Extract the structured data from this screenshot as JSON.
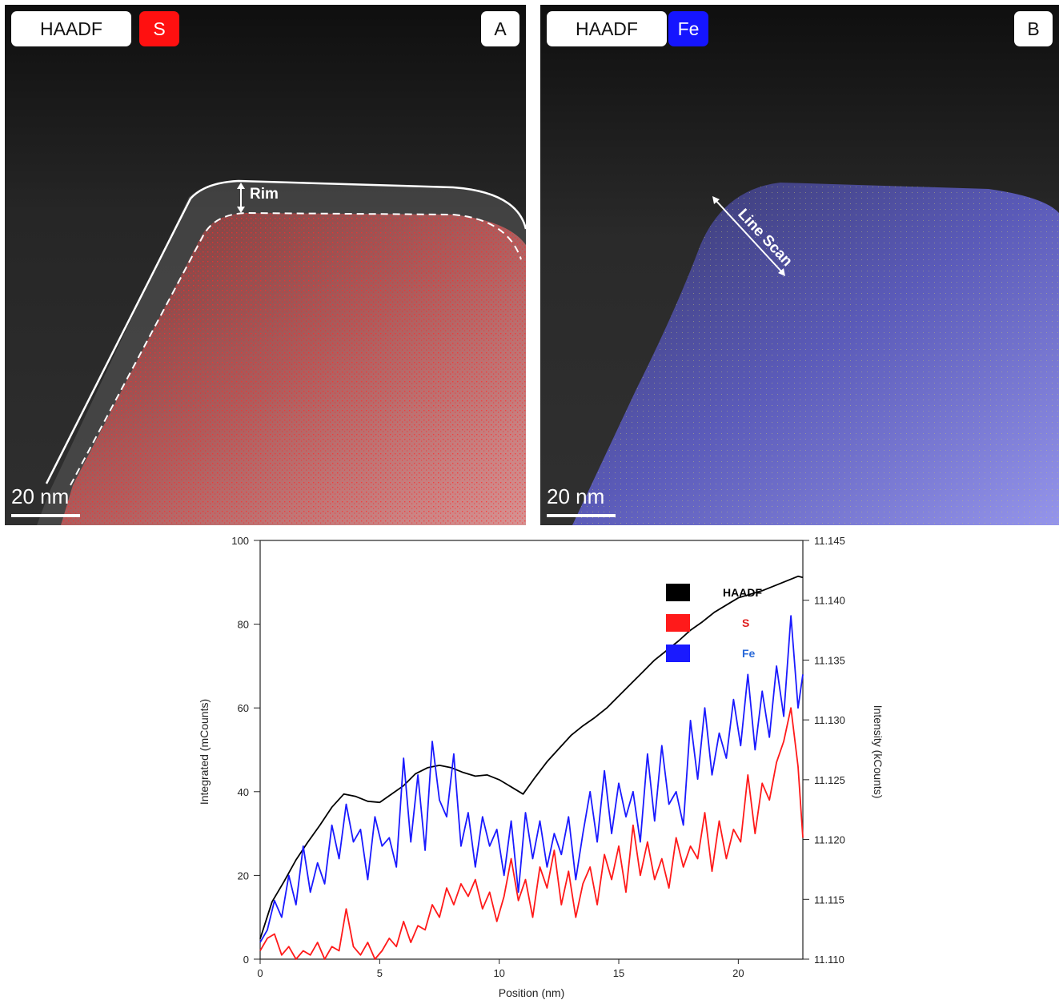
{
  "panel_a": {
    "channel_1": "HAADF",
    "channel_2": "S",
    "letter": "A",
    "scale_label": "20 nm",
    "annotation": "Rim",
    "overlay_color": "#ff3030"
  },
  "panel_b": {
    "channel_1": "HAADF",
    "channel_2": "Fe",
    "letter": "B",
    "scale_label": "20 nm",
    "annotation": "Line Scan",
    "overlay_color": "#7070ff"
  },
  "chart_data": {
    "type": "line",
    "xlabel": "Position (nm)",
    "ylabel_left": "Integrated (mCounts)",
    "ylabel_right": "Intensity (kCounts)",
    "xlim": [
      0,
      22.7
    ],
    "ylim_left": [
      0,
      100
    ],
    "ylim_right": [
      11.11,
      11.145
    ],
    "x_ticks": [
      0,
      5,
      10,
      15,
      20
    ],
    "y_ticks_left": [
      0,
      20,
      40,
      60,
      80,
      100
    ],
    "y_ticks_right": [
      "11.110",
      "11.115",
      "11.120",
      "11.125",
      "11.130",
      "11.135",
      "11.140",
      "11.145"
    ],
    "legend": [
      {
        "name": "HAADF",
        "color": "#000000",
        "label_color": "#000000"
      },
      {
        "name": "S",
        "color": "#ff1a1a",
        "label_color": "#e02020"
      },
      {
        "name": "Fe",
        "color": "#1a1aff",
        "label_color": "#2a6ad8"
      }
    ],
    "series": [
      {
        "name": "HAADF",
        "color": "#000000",
        "axis": "right",
        "x": [
          0,
          0.5,
          1,
          1.5,
          2,
          2.5,
          3,
          3.5,
          4,
          4.5,
          5,
          5.5,
          6,
          6.5,
          7,
          7.5,
          8,
          8.5,
          9,
          9.5,
          10,
          10.5,
          11,
          11.5,
          12,
          12.5,
          13,
          13.5,
          14,
          14.5,
          15,
          15.5,
          16,
          16.5,
          17,
          17.5,
          18,
          18.5,
          19,
          19.5,
          20,
          20.5,
          21,
          21.5,
          22,
          22.5,
          22.7
        ],
        "y": [
          11.1117,
          11.1148,
          11.1165,
          11.1183,
          11.1198,
          11.1212,
          11.1227,
          11.1238,
          11.1236,
          11.1232,
          11.1231,
          11.1238,
          11.1245,
          11.1255,
          11.126,
          11.1262,
          11.126,
          11.1256,
          11.1253,
          11.1254,
          11.125,
          11.1244,
          11.1238,
          11.1252,
          11.1265,
          11.1276,
          11.1287,
          11.1295,
          11.1302,
          11.131,
          11.132,
          11.133,
          11.134,
          11.135,
          11.1358,
          11.1366,
          11.1375,
          11.1382,
          11.139,
          11.1396,
          11.1402,
          11.1405,
          11.1408,
          11.1412,
          11.1416,
          11.142,
          11.1419
        ]
      },
      {
        "name": "S",
        "color": "#ff1a1a",
        "axis": "left",
        "x": [
          0,
          0.3,
          0.6,
          0.9,
          1.2,
          1.5,
          1.8,
          2.1,
          2.4,
          2.7,
          3.0,
          3.3,
          3.6,
          3.9,
          4.2,
          4.5,
          4.8,
          5.1,
          5.4,
          5.7,
          6.0,
          6.3,
          6.6,
          6.9,
          7.2,
          7.5,
          7.8,
          8.1,
          8.4,
          8.7,
          9.0,
          9.3,
          9.6,
          9.9,
          10.2,
          10.5,
          10.8,
          11.1,
          11.4,
          11.7,
          12.0,
          12.3,
          12.6,
          12.9,
          13.2,
          13.5,
          13.8,
          14.1,
          14.4,
          14.7,
          15.0,
          15.3,
          15.6,
          15.9,
          16.2,
          16.5,
          16.8,
          17.1,
          17.4,
          17.7,
          18.0,
          18.3,
          18.6,
          18.9,
          19.2,
          19.5,
          19.8,
          20.1,
          20.4,
          20.7,
          21.0,
          21.3,
          21.6,
          21.9,
          22.2,
          22.5,
          22.7
        ],
        "y": [
          2,
          5,
          6,
          1,
          3,
          0,
          2,
          1,
          4,
          0,
          3,
          2,
          12,
          3,
          1,
          4,
          0,
          2,
          5,
          3,
          9,
          4,
          8,
          7,
          13,
          10,
          17,
          13,
          18,
          15,
          19,
          12,
          16,
          9,
          15,
          24,
          14,
          19,
          10,
          22,
          17,
          26,
          13,
          21,
          10,
          18,
          22,
          13,
          25,
          19,
          27,
          16,
          32,
          20,
          28,
          19,
          24,
          17,
          29,
          22,
          27,
          24,
          35,
          21,
          33,
          24,
          31,
          28,
          44,
          30,
          42,
          38,
          47,
          52,
          60,
          46,
          29
        ]
      },
      {
        "name": "Fe",
        "color": "#1a1aff",
        "axis": "left",
        "x": [
          0,
          0.3,
          0.6,
          0.9,
          1.2,
          1.5,
          1.8,
          2.1,
          2.4,
          2.7,
          3.0,
          3.3,
          3.6,
          3.9,
          4.2,
          4.5,
          4.8,
          5.1,
          5.4,
          5.7,
          6.0,
          6.3,
          6.6,
          6.9,
          7.2,
          7.5,
          7.8,
          8.1,
          8.4,
          8.7,
          9.0,
          9.3,
          9.6,
          9.9,
          10.2,
          10.5,
          10.8,
          11.1,
          11.4,
          11.7,
          12.0,
          12.3,
          12.6,
          12.9,
          13.2,
          13.5,
          13.8,
          14.1,
          14.4,
          14.7,
          15.0,
          15.3,
          15.6,
          15.9,
          16.2,
          16.5,
          16.8,
          17.1,
          17.4,
          17.7,
          18.0,
          18.3,
          18.6,
          18.9,
          19.2,
          19.5,
          19.8,
          20.1,
          20.4,
          20.7,
          21.0,
          21.3,
          21.6,
          21.9,
          22.2,
          22.5,
          22.7
        ],
        "y": [
          4,
          7,
          14,
          10,
          20,
          13,
          27,
          16,
          23,
          18,
          32,
          24,
          37,
          28,
          31,
          19,
          34,
          27,
          29,
          22,
          48,
          28,
          44,
          26,
          52,
          38,
          34,
          49,
          27,
          35,
          22,
          34,
          27,
          31,
          20,
          33,
          16,
          35,
          24,
          33,
          22,
          30,
          25,
          34,
          19,
          30,
          40,
          28,
          45,
          30,
          42,
          34,
          40,
          28,
          49,
          33,
          51,
          37,
          40,
          32,
          57,
          43,
          60,
          44,
          54,
          48,
          62,
          51,
          68,
          50,
          64,
          53,
          70,
          58,
          82,
          60,
          68
        ]
      }
    ]
  }
}
